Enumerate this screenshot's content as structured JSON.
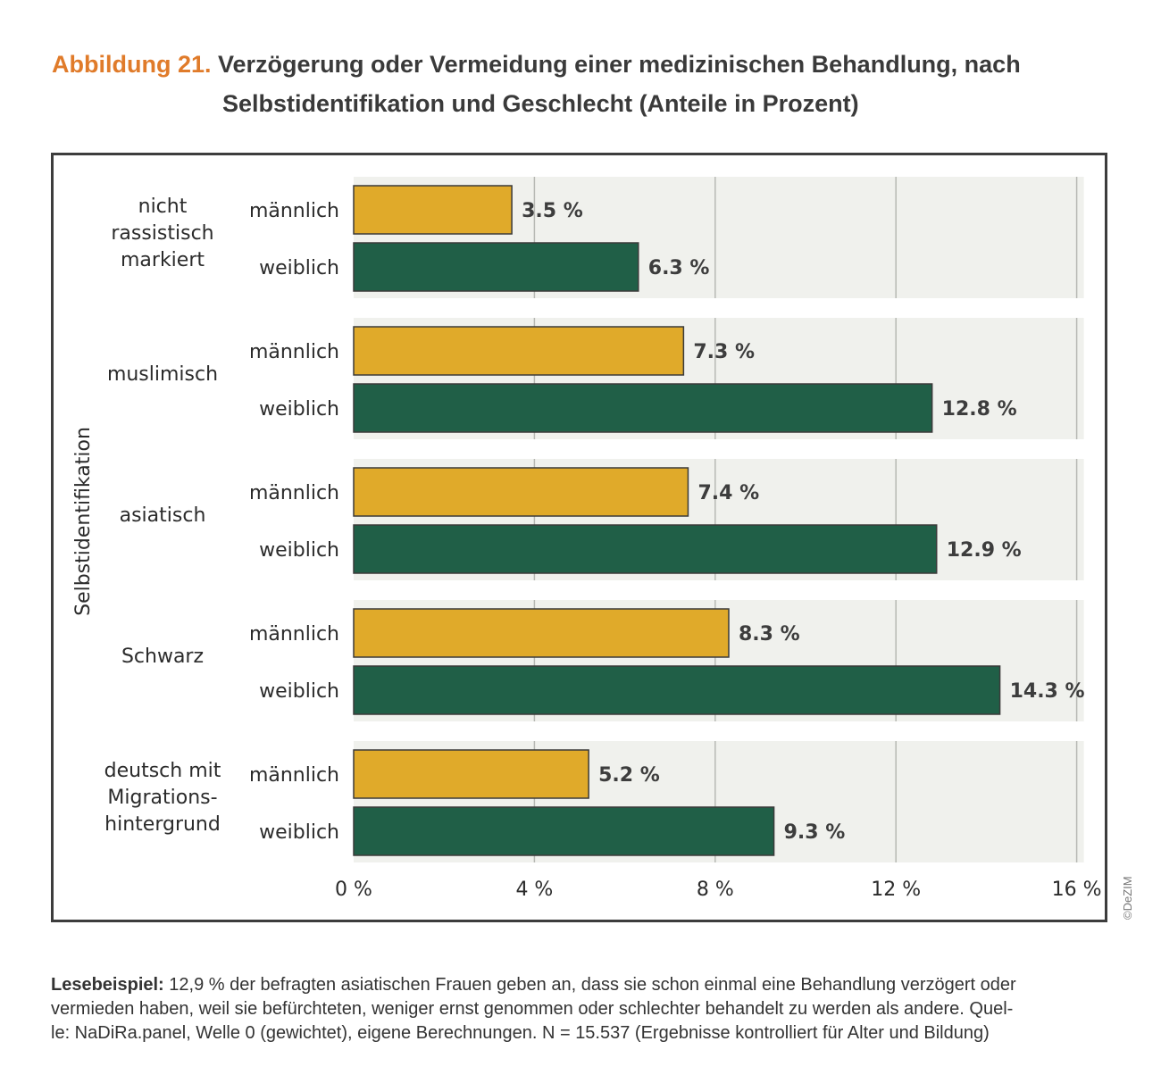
{
  "title": {
    "number": "Abbildung 21.",
    "line1": "Verzögerung oder Vermeidung einer medizinischen Behandlung, nach",
    "line2": "Selbstidentifikation und Geschlecht (Anteile in Prozent)"
  },
  "chart_data": {
    "type": "bar",
    "orientation": "horizontal",
    "ylabel": "Selbstidentifikation",
    "xlim": [
      0,
      16
    ],
    "xticks": [
      "0 %",
      "4 %",
      "8 %",
      "12 %",
      "16 %"
    ],
    "xtick_values": [
      0,
      4,
      8,
      12,
      16
    ],
    "grid": true,
    "colors": {
      "männlich": "#e0aa2a",
      "weiblich": "#205f47",
      "panel": "#f0f1ed",
      "grid": "#b7b9b4"
    },
    "groups": [
      {
        "label_lines": [
          "nicht",
          "rassistisch",
          "markiert"
        ],
        "bars": [
          {
            "label": "männlich",
            "value": 3.5,
            "text": "3.5 %"
          },
          {
            "label": "weiblich",
            "value": 6.3,
            "text": "6.3 %"
          }
        ]
      },
      {
        "label_lines": [
          "muslimisch"
        ],
        "bars": [
          {
            "label": "männlich",
            "value": 7.3,
            "text": "7.3 %"
          },
          {
            "label": "weiblich",
            "value": 12.8,
            "text": "12.8 %"
          }
        ]
      },
      {
        "label_lines": [
          "asiatisch"
        ],
        "bars": [
          {
            "label": "männlich",
            "value": 7.4,
            "text": "7.4 %"
          },
          {
            "label": "weiblich",
            "value": 12.9,
            "text": "12.9 %"
          }
        ]
      },
      {
        "label_lines": [
          "Schwarz"
        ],
        "bars": [
          {
            "label": "männlich",
            "value": 8.3,
            "text": "8.3 %"
          },
          {
            "label": "weiblich",
            "value": 14.3,
            "text": "14.3 %"
          }
        ]
      },
      {
        "label_lines": [
          "deutsch mit",
          "Migrations-",
          "hintergrund"
        ],
        "bars": [
          {
            "label": "männlich",
            "value": 5.2,
            "text": "5.2 %"
          },
          {
            "label": "weiblich",
            "value": 9.3,
            "text": "9.3 %"
          }
        ]
      }
    ]
  },
  "footnote": {
    "label": "Lesebeispiel:",
    "line1": " 12,9 % der befragten asiatischen Frauen geben an, dass sie schon einmal eine Behandlung verzögert oder",
    "line2": "vermieden haben, weil sie befürchteten, weniger ernst genommen oder schlechter behandelt zu werden als andere. Quel-",
    "line3": "le: NaDiRa.panel, Welle 0 (gewichtet), eigene Berechnungen. N = 15.537 (Ergebnisse kontrolliert für Alter und Bildung)"
  },
  "credit": "©DeZIM"
}
